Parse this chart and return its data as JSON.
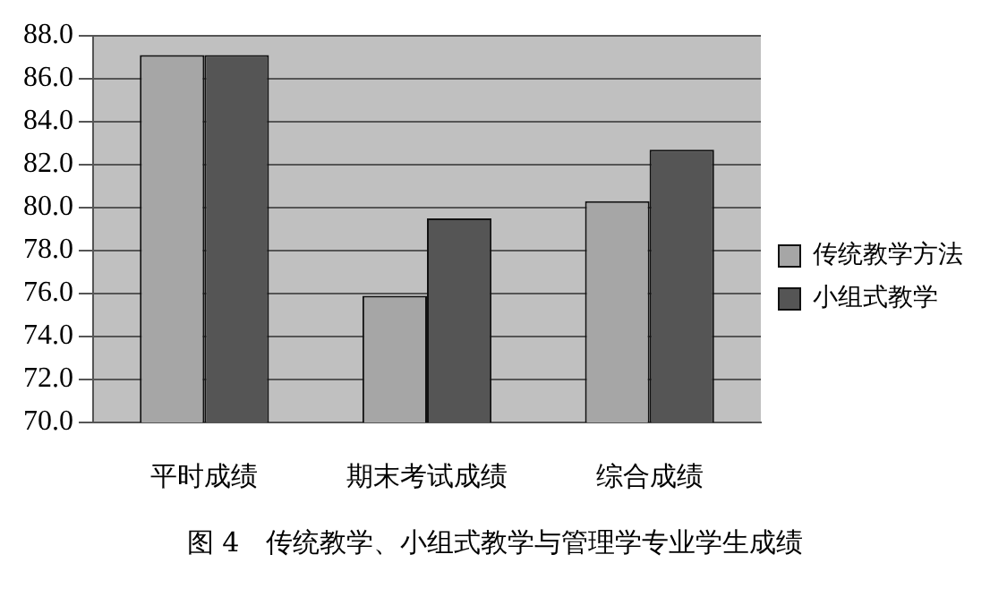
{
  "chart_data": {
    "type": "bar",
    "categories": [
      "平时成绩",
      "期末考试成绩",
      "综合成绩"
    ],
    "series": [
      {
        "name": "传统教学方法",
        "color": "#a6a6a6",
        "values": [
          87.1,
          75.9,
          80.3
        ]
      },
      {
        "name": "小组式教学",
        "color": "#555555",
        "values": [
          87.1,
          79.5,
          82.7
        ]
      }
    ],
    "ylim": [
      70,
      88
    ],
    "yticks": [
      {
        "value": 70,
        "label": "70.0"
      },
      {
        "value": 72,
        "label": "72.0"
      },
      {
        "value": 74,
        "label": "74.0"
      },
      {
        "value": 76,
        "label": "76.0"
      },
      {
        "value": 78,
        "label": "78.0"
      },
      {
        "value": 80,
        "label": "80.0"
      },
      {
        "value": 82,
        "label": "82.0"
      },
      {
        "value": 84,
        "label": "84.0"
      },
      {
        "value": 86,
        "label": "86.0"
      },
      {
        "value": 88,
        "label": "88.0"
      }
    ],
    "grid": "y",
    "legend": "right",
    "annotations": [
      "图 4　传统教学、小组式教学与管理学专业学生成绩"
    ]
  }
}
